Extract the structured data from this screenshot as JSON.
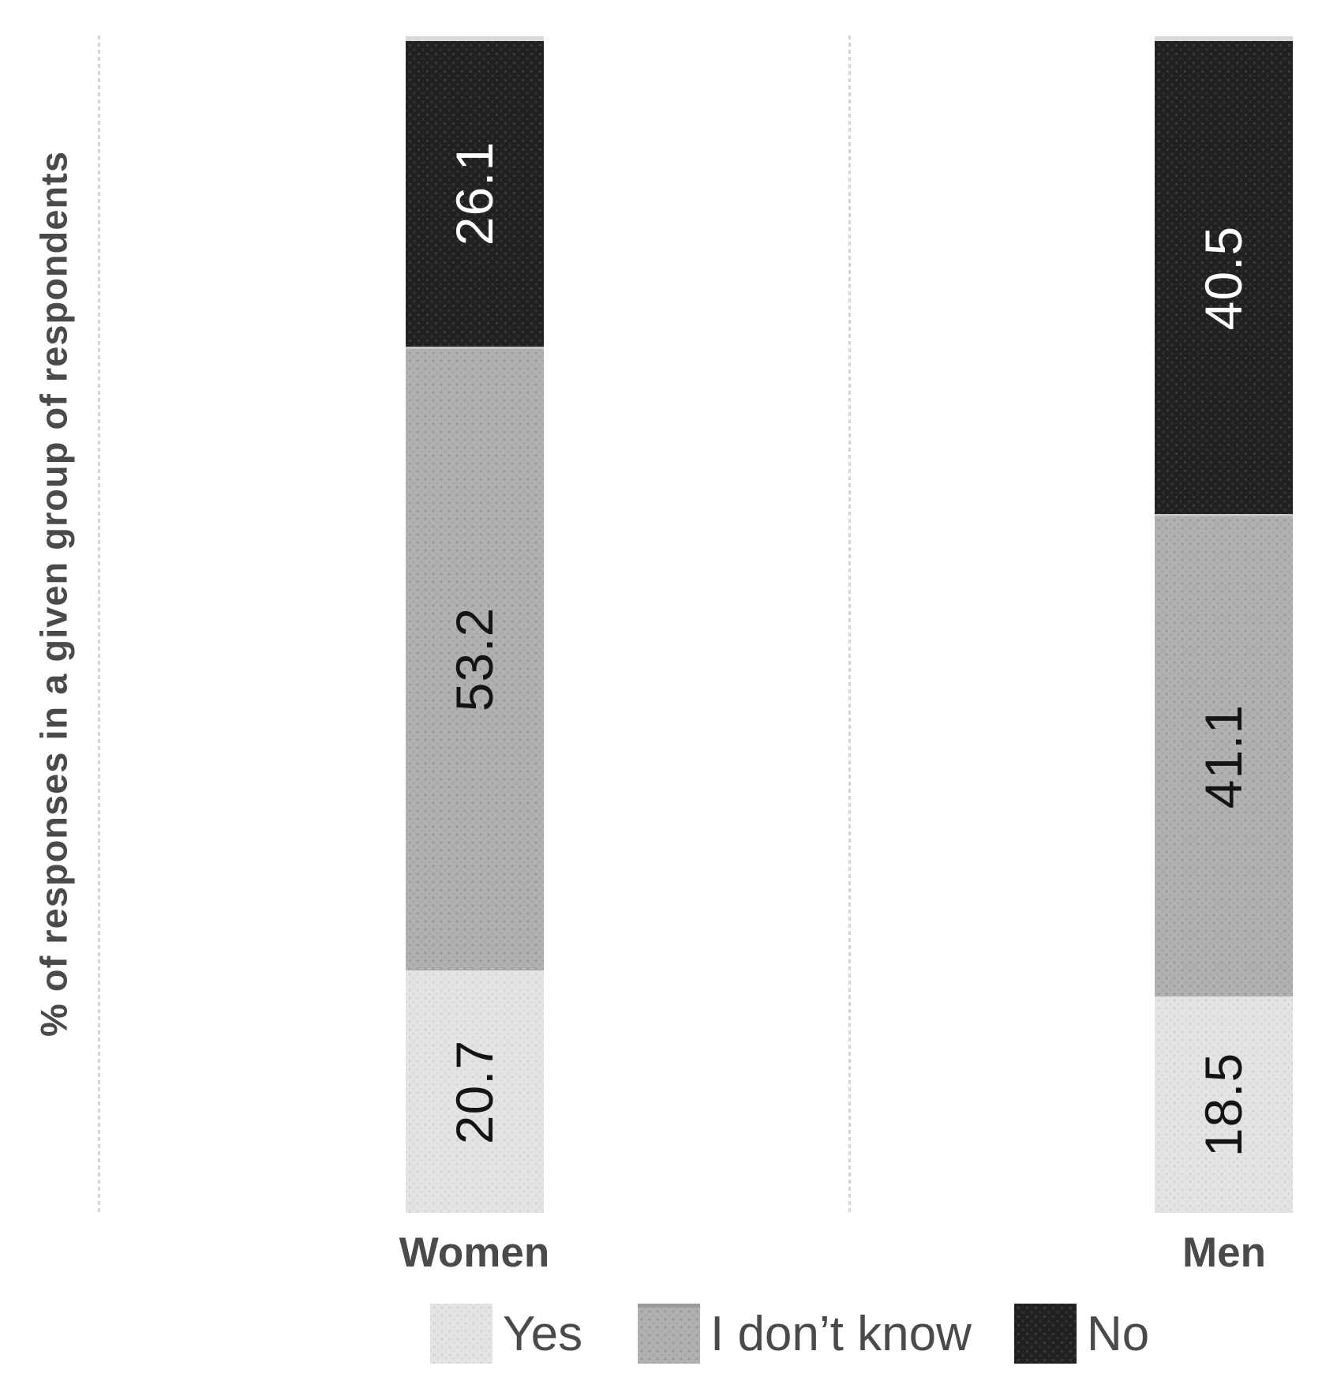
{
  "chart_data": {
    "type": "bar",
    "stacked": true,
    "orientation": "vertical",
    "title": "",
    "ylabel": "% of responses in a given group of respondents",
    "xlabel": "",
    "ylim": [
      0,
      100
    ],
    "grid": false,
    "legend_position": "bottom",
    "value_label_rotation": -90,
    "stack_order_top_to_bottom": [
      "No",
      "I don’t know",
      "Yes"
    ],
    "categories": [
      "Women",
      "Men"
    ],
    "series": [
      {
        "name": "Yes",
        "key": "yes",
        "color": "#e4e4e4",
        "label_color": "#141414",
        "values": [
          20.7,
          18.5
        ]
      },
      {
        "name": "I don’t know",
        "key": "idk",
        "color": "#b1b1b1",
        "label_color": "#141414",
        "values": [
          53.2,
          41.1
        ]
      },
      {
        "name": "No",
        "key": "no",
        "color": "#212121",
        "label_color": "#ffffff",
        "values": [
          26.1,
          40.5
        ]
      }
    ],
    "value_labels": {
      "Women": {
        "Yes": "20.7",
        "I don’t know": "53.2",
        "No": "26.1"
      },
      "Men": {
        "Yes": "18.5",
        "I don’t know": "41.1",
        "No": "40.5"
      }
    },
    "colors": {
      "axis_text": "#4a4a4a",
      "dotted_line": "#d4d4d4",
      "background": "#ffffff"
    }
  }
}
